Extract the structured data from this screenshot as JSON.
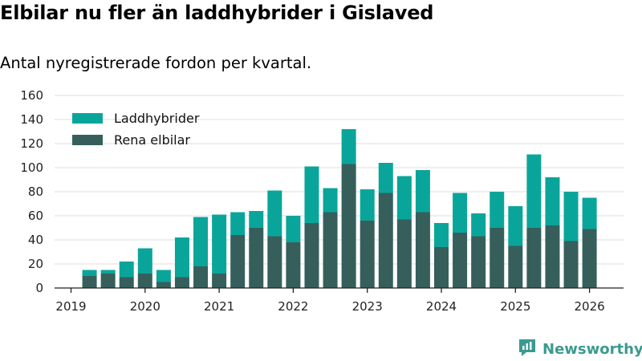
{
  "header": {
    "title": "Elbilar nu fler än laddhybrider i Gislaved",
    "subtitle": "Antal nyregistrerade fordon per kvartal."
  },
  "brand": {
    "name": "Newsworthy",
    "icon": "newsworthy-logo-icon"
  },
  "colors": {
    "hybrid": "#0aa59a",
    "electric": "#365f5c",
    "grid": "#dddddd",
    "axis": "#222222"
  },
  "chart_data": {
    "type": "bar",
    "stacked": true,
    "title": "Elbilar nu fler än laddhybrider i Gislaved",
    "subtitle": "Antal nyregistrerade fordon per kvartal.",
    "xlabel": "",
    "ylabel": "",
    "ylim": [
      0,
      160
    ],
    "yticks": [
      0,
      20,
      40,
      60,
      80,
      100,
      120,
      140,
      160
    ],
    "xticks": [
      "2019",
      "2020",
      "2021",
      "2022",
      "2023",
      "2024",
      "2025",
      "2026"
    ],
    "legend": {
      "position": "top-left",
      "items": [
        "Laddhybrider",
        "Rena elbilar"
      ]
    },
    "categories": [
      "2019 Q2",
      "2019 Q3",
      "2019 Q4",
      "2020 Q1",
      "2020 Q2",
      "2020 Q3",
      "2020 Q4",
      "2021 Q1",
      "2021 Q2",
      "2021 Q3",
      "2021 Q4",
      "2022 Q1",
      "2022 Q2",
      "2022 Q3",
      "2022 Q4",
      "2023 Q1",
      "2023 Q2",
      "2023 Q3",
      "2023 Q4",
      "2024 Q1",
      "2024 Q2",
      "2024 Q3",
      "2024 Q4",
      "2025 Q1",
      "2025 Q2",
      "2025 Q3",
      "2025 Q4",
      "2026 Q1"
    ],
    "series": [
      {
        "name": "Rena elbilar",
        "values": [
          10,
          12,
          9,
          12,
          5,
          9,
          18,
          12,
          44,
          50,
          43,
          38,
          54,
          63,
          103,
          56,
          79,
          57,
          63,
          34,
          46,
          43,
          50,
          35,
          50,
          52,
          39,
          49
        ]
      },
      {
        "name": "Laddhybrider",
        "values": [
          5,
          3,
          13,
          21,
          10,
          33,
          41,
          49,
          19,
          14,
          38,
          22,
          47,
          20,
          29,
          26,
          25,
          36,
          35,
          20,
          33,
          19,
          30,
          33,
          61,
          40,
          41,
          26
        ]
      }
    ]
  }
}
